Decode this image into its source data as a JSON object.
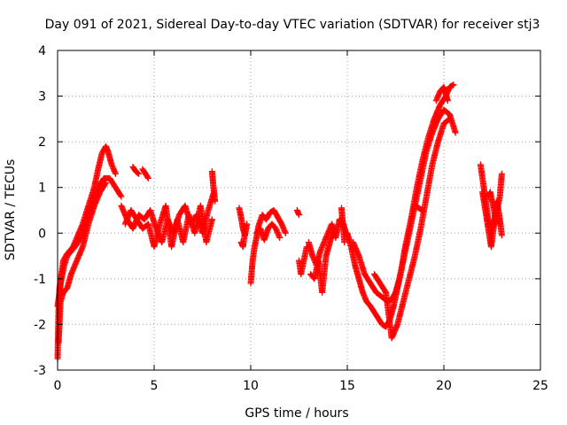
{
  "chart_data": {
    "type": "scatter",
    "title": "Day 091 of 2021, Sidereal Day-to-day VTEC variation (SDTVAR) for receiver stj3",
    "xlabel": "GPS time / hours",
    "ylabel": "SDTVAR / TECUs",
    "xlim": [
      0,
      25
    ],
    "ylim": [
      -3,
      4
    ],
    "xticks": [
      0,
      5,
      10,
      15,
      20,
      25
    ],
    "yticks": [
      -3,
      -2,
      -1,
      0,
      1,
      2,
      3,
      4
    ],
    "grid": true,
    "marker": "plus",
    "color": "#ff0000",
    "series": [
      {
        "name": "SDTVAR",
        "tracks": [
          {
            "x": [
              0.0,
              0.05,
              0.1,
              0.2,
              0.3,
              0.5,
              0.8,
              1.0,
              1.3,
              1.6,
              1.9,
              2.1,
              2.3,
              2.5,
              2.6,
              2.8,
              3.0
            ],
            "y": [
              -2.75,
              -1.7,
              -1.2,
              -0.9,
              -0.6,
              -0.45,
              -0.3,
              -0.1,
              0.2,
              0.6,
              1.0,
              1.4,
              1.75,
              1.9,
              1.8,
              1.5,
              1.3
            ]
          },
          {
            "x": [
              0.0,
              0.1,
              0.2,
              0.35,
              0.5,
              0.7,
              0.9,
              1.2,
              1.5,
              1.8,
              2.1,
              2.4,
              2.7,
              3.0,
              3.3
            ],
            "y": [
              -1.6,
              -1.3,
              -1.0,
              -0.7,
              -0.5,
              -0.4,
              -0.3,
              -0.1,
              0.3,
              0.7,
              1.0,
              1.2,
              1.2,
              1.0,
              0.8
            ]
          },
          {
            "x": [
              0.05,
              0.15,
              0.3,
              0.5,
              0.7,
              1.0,
              1.3,
              1.6,
              1.9,
              2.2,
              2.5
            ],
            "y": [
              -2.4,
              -1.5,
              -1.3,
              -1.2,
              -0.9,
              -0.6,
              -0.3,
              0.2,
              0.6,
              0.9,
              1.1
            ]
          },
          {
            "x": [
              3.3,
              3.6,
              3.9,
              4.2,
              4.5,
              4.8,
              5.1,
              5.4,
              5.7,
              6.0,
              6.3,
              6.6,
              6.9,
              7.2,
              7.5,
              7.8,
              8.1
            ],
            "y": [
              0.6,
              0.3,
              0.1,
              0.4,
              0.3,
              0.5,
              0.1,
              -0.2,
              0.3,
              0.0,
              0.4,
              0.6,
              0.2,
              0.4,
              0.0,
              0.5,
              0.9
            ]
          },
          {
            "x": [
              3.5,
              3.8,
              4.1,
              4.4,
              4.7,
              5.0,
              5.3,
              5.6,
              5.9,
              6.2,
              6.5,
              6.8,
              7.1,
              7.4,
              7.7,
              8.0
            ],
            "y": [
              0.2,
              0.5,
              0.3,
              0.1,
              0.2,
              -0.3,
              0.2,
              0.6,
              -0.3,
              0.3,
              -0.2,
              0.4,
              0.0,
              0.6,
              -0.2,
              0.3
            ]
          },
          {
            "x": [
              3.9,
              4.05,
              4.2
            ],
            "y": [
              1.45,
              1.35,
              1.3
            ]
          },
          {
            "x": [
              4.4,
              4.55,
              4.7
            ],
            "y": [
              1.4,
              1.3,
              1.2
            ]
          },
          {
            "x": [
              8.0,
              8.05,
              8.1,
              8.15
            ],
            "y": [
              1.35,
              1.1,
              0.9,
              0.7
            ]
          },
          {
            "x": [
              9.4,
              9.5,
              9.6,
              9.7,
              9.8
            ],
            "y": [
              0.55,
              0.35,
              0.1,
              -0.05,
              0.2
            ]
          },
          {
            "x": [
              9.5,
              9.6,
              9.7
            ],
            "y": [
              -0.2,
              -0.3,
              0.0
            ]
          },
          {
            "x": [
              10.0,
              10.1,
              10.2,
              10.3,
              10.4,
              10.6,
              10.8,
              11.0,
              11.2,
              11.4,
              11.6,
              11.8
            ],
            "y": [
              -1.1,
              -0.6,
              -0.3,
              -0.1,
              0.15,
              0.4,
              0.3,
              0.45,
              0.5,
              0.35,
              0.2,
              0.0
            ]
          },
          {
            "x": [
              10.3,
              10.5,
              10.7,
              10.9,
              11.1,
              11.3,
              11.5
            ],
            "y": [
              0.0,
              0.1,
              -0.15,
              0.1,
              0.2,
              0.1,
              -0.1
            ]
          },
          {
            "x": [
              12.4,
              12.45,
              12.5
            ],
            "y": [
              0.5,
              0.45,
              0.4
            ]
          },
          {
            "x": [
              12.5,
              12.6,
              12.75,
              12.9
            ],
            "y": [
              -0.6,
              -0.9,
              -0.6,
              -0.3
            ]
          },
          {
            "x": [
              13.0,
              13.2,
              13.4,
              13.6,
              13.8,
              14.0,
              14.2,
              14.4,
              14.6,
              14.8,
              15.0
            ],
            "y": [
              -0.2,
              -0.5,
              -0.7,
              -0.4,
              -0.2,
              0.0,
              0.2,
              -0.1,
              0.3,
              0.2,
              -0.1
            ]
          },
          {
            "x": [
              13.1,
              13.3,
              13.5,
              13.7,
              13.9,
              14.1,
              14.3
            ],
            "y": [
              -0.9,
              -1.0,
              -0.6,
              -1.3,
              -0.5,
              -0.2,
              0.1
            ]
          },
          {
            "x": [
              14.7,
              14.75,
              14.8,
              14.85
            ],
            "y": [
              0.55,
              0.3,
              0.1,
              -0.2
            ]
          },
          {
            "x": [
              15.0,
              15.2,
              15.4,
              15.6,
              15.8,
              16.0,
              16.2,
              16.5,
              16.8,
              17.0,
              17.2,
              17.4,
              17.6,
              17.8,
              18.0,
              18.3,
              18.6,
              18.9,
              19.2,
              19.5,
              19.8,
              20.1,
              20.3,
              20.5
            ],
            "y": [
              0.0,
              -0.3,
              -0.7,
              -1.0,
              -1.3,
              -1.5,
              -1.6,
              -1.8,
              -2.0,
              -2.05,
              -1.9,
              -1.6,
              -1.2,
              -0.8,
              -0.3,
              0.3,
              1.0,
              1.6,
              2.1,
              2.5,
              2.8,
              3.0,
              3.2,
              3.25
            ]
          },
          {
            "x": [
              15.3,
              15.6,
              15.9,
              16.2,
              16.5,
              16.8,
              17.1,
              17.3,
              17.5,
              17.7,
              17.9,
              18.2,
              18.5,
              18.8,
              19.1,
              19.4,
              19.7,
              20.0,
              20.3,
              20.6
            ],
            "y": [
              -0.2,
              -0.5,
              -0.9,
              -1.1,
              -1.3,
              -1.4,
              -1.5,
              -1.45,
              -1.3,
              -1.0,
              -0.6,
              0.0,
              0.6,
              1.2,
              1.8,
              2.2,
              2.5,
              2.7,
              2.6,
              2.2
            ]
          },
          {
            "x": [
              16.4,
              16.7,
              17.0,
              17.3,
              17.6,
              17.9,
              18.2,
              18.5,
              18.8,
              19.1,
              19.4,
              19.7,
              20.0,
              20.3
            ],
            "y": [
              -0.9,
              -1.1,
              -1.3,
              -2.3,
              -2.0,
              -1.5,
              -1.0,
              -0.5,
              0.1,
              0.8,
              1.5,
              2.0,
              2.4,
              2.5
            ]
          },
          {
            "x": [
              18.5,
              18.7,
              18.9
            ],
            "y": [
              0.6,
              0.55,
              0.5
            ]
          },
          {
            "x": [
              19.6,
              19.8,
              20.0,
              20.1,
              20.2
            ],
            "y": [
              2.9,
              3.1,
              3.2,
              3.05,
              2.9
            ]
          },
          {
            "x": [
              21.9,
              22.0,
              22.1,
              22.2,
              22.3,
              22.5,
              22.7,
              22.9,
              23.0
            ],
            "y": [
              1.5,
              1.2,
              0.9,
              0.6,
              0.3,
              0.1,
              0.4,
              0.8,
              1.3
            ]
          },
          {
            "x": [
              22.0,
              22.15,
              22.3,
              22.45,
              22.6,
              22.75,
              22.9,
              23.0
            ],
            "y": [
              0.9,
              0.5,
              0.1,
              -0.3,
              0.2,
              0.7,
              0.3,
              -0.05
            ]
          },
          {
            "x": [
              22.3,
              22.4,
              22.5,
              22.6,
              22.7
            ],
            "y": [
              0.8,
              0.9,
              0.7,
              0.5,
              0.2
            ]
          }
        ]
      }
    ]
  }
}
